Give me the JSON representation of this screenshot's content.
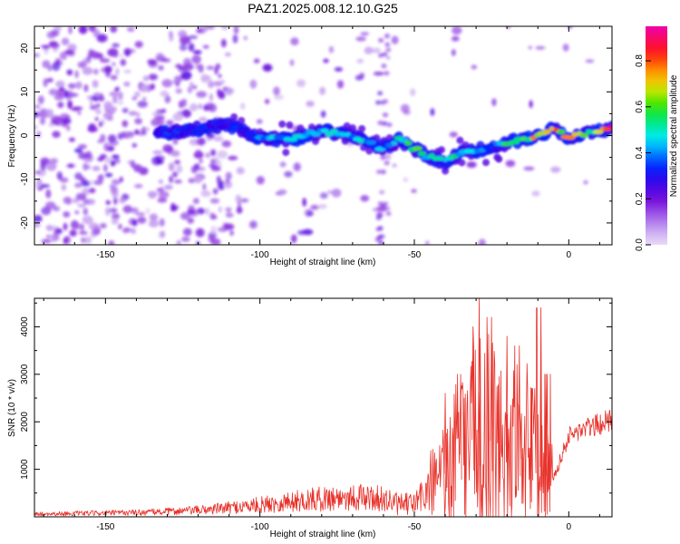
{
  "title": "PAZ1.2025.008.12.10.G25",
  "colors": {
    "snr_line": "#e8322b",
    "axis": "#000000",
    "background": "#ffffff",
    "spectrogram_background": "#ffffff"
  },
  "chart_data": [
    {
      "type": "heatmap",
      "title": "PAZ1.2025.008.12.10.G25",
      "xlabel": "Height of straight line (km)",
      "ylabel": "Frequency (Hz)",
      "xlim": [
        -173,
        14
      ],
      "ylim": [
        -25,
        25
      ],
      "xticks": [
        -150,
        -100,
        -50,
        0
      ],
      "yticks": [
        -20,
        -10,
        0,
        10,
        20
      ],
      "grid": false,
      "colorbar": {
        "label": "Normalized spectral amplitude",
        "range": [
          0.0,
          0.95
        ],
        "ticks": [
          0.0,
          0.2,
          0.4,
          0.6,
          0.8
        ],
        "colormap": "rainbow (violet → blue → cyan → green → yellow → red → magenta)"
      },
      "ridge": {
        "description": "main frequency ridge (height km, frequency Hz)",
        "x": [
          -133,
          -120,
          -110,
          -100,
          -90,
          -80,
          -70,
          -60,
          -55,
          -50,
          -45,
          -40,
          -35,
          -30,
          -25,
          -20,
          -15,
          -10,
          -5,
          0,
          5,
          10,
          14
        ],
        "y": [
          0.5,
          1.5,
          2.5,
          -0.5,
          -1.0,
          1.0,
          0.0,
          -3.0,
          -1.0,
          -3.0,
          -5.0,
          -6.0,
          -4.0,
          -3.5,
          -2.5,
          -1.5,
          -1.0,
          0.0,
          1.5,
          -0.5,
          0.5,
          1.0,
          1.5
        ],
        "amplitude": [
          0.3,
          0.35,
          0.3,
          0.4,
          0.45,
          0.5,
          0.45,
          0.4,
          0.5,
          0.55,
          0.5,
          0.55,
          0.5,
          0.45,
          0.4,
          0.55,
          0.6,
          0.7,
          0.75,
          0.75,
          0.6,
          0.65,
          0.85
        ]
      },
      "background_noise": {
        "description": "scattered low-amplitude noise, dense for heights below -110 km",
        "dense_x_range": [
          -173,
          -110
        ],
        "amplitude_range": [
          0.0,
          0.15
        ]
      }
    },
    {
      "type": "line",
      "xlabel": "Height of straight line (km)",
      "ylabel": "SNR (10 * v/v)",
      "xlim": [
        -173,
        14
      ],
      "ylim": [
        0,
        4600
      ],
      "xticks": [
        -150,
        -100,
        -50,
        0
      ],
      "yticks": [
        1000,
        2000,
        3000,
        4000
      ],
      "grid": false,
      "series": [
        {
          "color": "#e8322b",
          "x": [
            -173,
            -160,
            -150,
            -140,
            -130,
            -120,
            -110,
            -100,
            -90,
            -80,
            -70,
            -60,
            -55,
            -50,
            -45,
            -40,
            -35,
            -30,
            -27,
            -25,
            -20,
            -15,
            -10,
            -8,
            -5,
            0,
            5,
            10,
            14
          ],
          "y": [
            60,
            70,
            80,
            90,
            110,
            140,
            190,
            250,
            320,
            380,
            420,
            380,
            250,
            280,
            600,
            900,
            1300,
            1700,
            1900,
            1600,
            1500,
            1400,
            1200,
            900,
            800,
            1700,
            1850,
            1950,
            2050
          ],
          "peaks": {
            "x": [
              -40,
              -35,
              -31,
              -29,
              -25,
              -20,
              -16,
              -12,
              -9,
              -7
            ],
            "y": [
              2600,
              3000,
              4000,
              4600,
              4200,
              3800,
              3600,
              2700,
              4400,
              3000
            ]
          }
        }
      ]
    }
  ]
}
